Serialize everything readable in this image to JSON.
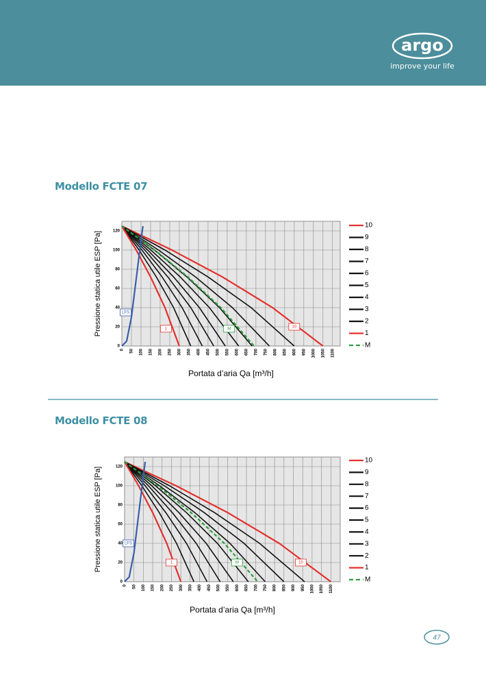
{
  "header": {
    "logo": "argo",
    "tagline": "improve your life"
  },
  "sections": [
    {
      "title": "Modello FCTE 07"
    },
    {
      "title": "Modello FCTE 08"
    }
  ],
  "chart_data": [
    {
      "type": "line",
      "x_label": "Portata d’aria Qa [m³/h]",
      "y_label": "Pressione statica utile ESP [Pa]",
      "xlim": [
        0,
        1140
      ],
      "ylim": [
        0,
        130
      ],
      "xticks": [
        0,
        50,
        100,
        150,
        200,
        250,
        300,
        350,
        400,
        450,
        500,
        550,
        600,
        650,
        700,
        750,
        800,
        850,
        900,
        950,
        1000,
        1050,
        1100
      ],
      "yticks": [
        0,
        20,
        40,
        60,
        80,
        100,
        120
      ],
      "grid": true,
      "series": [
        {
          "name": "10",
          "color": "#e3302c",
          "x": [
            0,
            262,
            525,
            787,
            1050
          ],
          "values": [
            125,
            100,
            72,
            40,
            0
          ],
          "label_at": [
            900,
            20
          ]
        },
        {
          "name": "9",
          "color": "#111111",
          "x": [
            0,
            225,
            450,
            675,
            900
          ],
          "values": [
            125,
            100,
            72,
            40,
            0
          ]
        },
        {
          "name": "8",
          "color": "#111111",
          "x": [
            0,
            192,
            385,
            577,
            770
          ],
          "values": [
            125,
            100,
            72,
            40,
            0
          ]
        },
        {
          "name": "7",
          "color": "#111111",
          "x": [
            0,
            170,
            340,
            510,
            680
          ],
          "values": [
            125,
            100,
            72,
            40,
            0
          ]
        },
        {
          "name": "6",
          "color": "#111111",
          "x": [
            0,
            152,
            305,
            457,
            610
          ],
          "values": [
            125,
            100,
            72,
            40,
            0
          ]
        },
        {
          "name": "5",
          "color": "#111111",
          "x": [
            0,
            135,
            270,
            405,
            540
          ],
          "values": [
            125,
            100,
            72,
            40,
            0
          ]
        },
        {
          "name": "4",
          "color": "#111111",
          "x": [
            0,
            120,
            240,
            360,
            480
          ],
          "values": [
            125,
            100,
            72,
            40,
            0
          ]
        },
        {
          "name": "3",
          "color": "#111111",
          "x": [
            0,
            105,
            210,
            315,
            420
          ],
          "values": [
            125,
            100,
            72,
            40,
            0
          ]
        },
        {
          "name": "2",
          "color": "#111111",
          "x": [
            0,
            90,
            180,
            270,
            360
          ],
          "values": [
            125,
            100,
            72,
            40,
            0
          ]
        },
        {
          "name": "1",
          "color": "#e3302c",
          "x": [
            0,
            75,
            150,
            225,
            300
          ],
          "values": [
            125,
            100,
            72,
            40,
            0
          ],
          "label_at": [
            230,
            18
          ]
        },
        {
          "name": "M",
          "color": "#2e9e3e",
          "dashed": true,
          "x": [
            0,
            172,
            345,
            517,
            690
          ],
          "values": [
            125,
            100,
            72,
            40,
            0
          ],
          "label_at": [
            560,
            18
          ]
        },
        {
          "name": "LFS",
          "color": "#3a5faa",
          "in_legend": false,
          "x": [
            0,
            25,
            50,
            75,
            100,
            110
          ],
          "values": [
            0,
            5,
            30,
            70,
            110,
            125
          ],
          "label_at": [
            20,
            35
          ]
        }
      ]
    },
    {
      "type": "line",
      "x_label": "Portata d’aria Qa [m³/h]",
      "y_label": "Pressione statica utile ESP [Pa]",
      "xlim": [
        0,
        1150
      ],
      "ylim": [
        0,
        130
      ],
      "xticks": [
        0,
        50,
        100,
        150,
        200,
        250,
        300,
        350,
        400,
        450,
        500,
        550,
        600,
        650,
        700,
        750,
        800,
        850,
        900,
        950,
        1000,
        1050,
        1100
      ],
      "yticks": [
        0,
        20,
        40,
        60,
        80,
        100,
        120
      ],
      "grid": true,
      "series": [
        {
          "name": "10",
          "color": "#e3302c",
          "x": [
            0,
            275,
            550,
            825,
            1100
          ],
          "values": [
            125,
            100,
            72,
            40,
            0
          ],
          "label_at": [
            940,
            20
          ]
        },
        {
          "name": "9",
          "color": "#111111",
          "x": [
            0,
            240,
            480,
            720,
            960
          ],
          "values": [
            125,
            100,
            72,
            40,
            0
          ]
        },
        {
          "name": "8",
          "color": "#111111",
          "x": [
            0,
            212,
            425,
            637,
            850
          ],
          "values": [
            125,
            100,
            72,
            40,
            0
          ]
        },
        {
          "name": "7",
          "color": "#111111",
          "x": [
            0,
            187,
            375,
            562,
            750
          ],
          "values": [
            125,
            100,
            72,
            40,
            0
          ]
        },
        {
          "name": "6",
          "color": "#111111",
          "x": [
            0,
            165,
            330,
            495,
            660
          ],
          "values": [
            125,
            100,
            72,
            40,
            0
          ]
        },
        {
          "name": "5",
          "color": "#111111",
          "x": [
            0,
            145,
            290,
            435,
            580
          ],
          "values": [
            125,
            100,
            72,
            40,
            0
          ]
        },
        {
          "name": "4",
          "color": "#111111",
          "x": [
            0,
            127,
            255,
            382,
            510
          ],
          "values": [
            125,
            100,
            72,
            40,
            0
          ]
        },
        {
          "name": "3",
          "color": "#111111",
          "x": [
            0,
            110,
            220,
            330,
            440
          ],
          "values": [
            125,
            100,
            72,
            40,
            0
          ]
        },
        {
          "name": "2",
          "color": "#111111",
          "x": [
            0,
            92,
            185,
            277,
            370
          ],
          "values": [
            125,
            100,
            72,
            40,
            0
          ]
        },
        {
          "name": "1",
          "color": "#e3302c",
          "x": [
            0,
            75,
            150,
            225,
            300
          ],
          "values": [
            125,
            100,
            72,
            40,
            0
          ],
          "label_at": [
            250,
            20
          ]
        },
        {
          "name": "M",
          "color": "#2e9e3e",
          "dashed": true,
          "x": [
            0,
            177,
            355,
            532,
            710
          ],
          "values": [
            125,
            100,
            72,
            40,
            0
          ],
          "label_at": [
            600,
            20
          ]
        },
        {
          "name": "LFS",
          "color": "#3a5faa",
          "in_legend": false,
          "x": [
            0,
            25,
            50,
            75,
            100,
            110
          ],
          "values": [
            0,
            5,
            30,
            70,
            110,
            125
          ],
          "label_at": [
            20,
            40
          ]
        }
      ]
    }
  ],
  "page_number": "47"
}
